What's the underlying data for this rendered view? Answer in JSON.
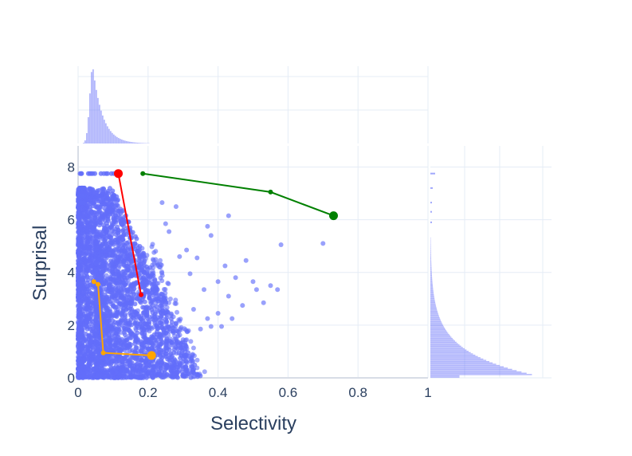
{
  "chart_data": {
    "type": "scatter",
    "title": "",
    "xlabel": "Selectivity",
    "ylabel": "Surprisal",
    "xlim": [
      0,
      1
    ],
    "ylim": [
      0,
      8.8
    ],
    "x_ticks": [
      {
        "v": 0,
        "label": "0"
      },
      {
        "v": 0.2,
        "label": "0.2"
      },
      {
        "v": 0.4,
        "label": "0.4"
      },
      {
        "v": 0.6,
        "label": "0.6"
      },
      {
        "v": 0.8,
        "label": "0.8"
      },
      {
        "v": 1,
        "label": "1"
      }
    ],
    "y_ticks": [
      {
        "v": 0,
        "label": "0"
      },
      {
        "v": 2,
        "label": "2"
      },
      {
        "v": 4,
        "label": "4"
      },
      {
        "v": 6,
        "label": "6"
      },
      {
        "v": 8,
        "label": "8"
      }
    ],
    "grid": true,
    "marginal_x": "histogram",
    "marginal_y": "histogram",
    "scatter_color": "#636efa",
    "scatter_outliers": [
      [
        0.43,
        6.15
      ],
      [
        0.37,
        5.75
      ],
      [
        0.38,
        5.4
      ],
      [
        0.58,
        5.05
      ],
      [
        0.7,
        5.1
      ],
      [
        0.48,
        4.45
      ],
      [
        0.42,
        4.25
      ],
      [
        0.45,
        3.8
      ],
      [
        0.4,
        3.65
      ],
      [
        0.5,
        3.65
      ],
      [
        0.51,
        3.35
      ],
      [
        0.55,
        3.5
      ],
      [
        0.57,
        3.35
      ],
      [
        0.43,
        3.1
      ],
      [
        0.47,
        2.75
      ],
      [
        0.53,
        2.85
      ],
      [
        0.4,
        2.45
      ],
      [
        0.44,
        2.25
      ],
      [
        0.38,
        1.95
      ],
      [
        0.35,
        1.85
      ],
      [
        0.36,
        3.35
      ],
      [
        0.33,
        2.6
      ],
      [
        0.32,
        3.95
      ],
      [
        0.29,
        4.6
      ],
      [
        0.31,
        4.85
      ],
      [
        0.34,
        4.55
      ],
      [
        0.25,
        5.85
      ],
      [
        0.26,
        5.55
      ],
      [
        0.24,
        6.65
      ],
      [
        0.28,
        6.5
      ],
      [
        0.28,
        2.05
      ],
      [
        0.3,
        1.45
      ],
      [
        0.25,
        1.15
      ],
      [
        0.37,
        2.25
      ],
      [
        0.41,
        1.95
      ]
    ],
    "series": [
      {
        "color": "#ff0000",
        "x": [
          0.115,
          0.18
        ],
        "y": [
          7.75,
          3.15
        ]
      },
      {
        "color": "#008000",
        "x": [
          0.185,
          0.55,
          0.73
        ],
        "y": [
          7.75,
          7.05,
          6.15
        ]
      },
      {
        "color": "#ffa500",
        "x": [
          0.045,
          0.057,
          0.072,
          0.21
        ],
        "y": [
          3.65,
          3.55,
          0.95,
          0.85
        ]
      }
    ]
  }
}
